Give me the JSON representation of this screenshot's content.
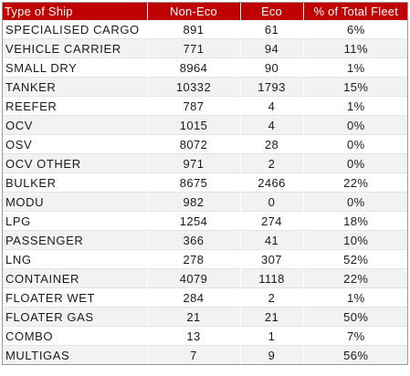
{
  "table": {
    "headers": [
      "Type of Ship",
      "Non-Eco",
      "Eco",
      "% of Total Fleet"
    ],
    "rows": [
      [
        "SPECIALISED CARGO",
        "891",
        "61",
        "6%"
      ],
      [
        "VEHICLE CARRIER",
        "771",
        "94",
        "11%"
      ],
      [
        "SMALL DRY",
        "8964",
        "90",
        "1%"
      ],
      [
        "TANKER",
        "10332",
        "1793",
        "15%"
      ],
      [
        "REEFER",
        "787",
        "4",
        "1%"
      ],
      [
        "OCV",
        "1015",
        "4",
        "0%"
      ],
      [
        "OSV",
        "8072",
        "28",
        "0%"
      ],
      [
        "OCV OTHER",
        "971",
        "2",
        "0%"
      ],
      [
        "BULKER",
        "8675",
        "2466",
        "22%"
      ],
      [
        "MODU",
        "982",
        "0",
        "0%"
      ],
      [
        "LPG",
        "1254",
        "274",
        "18%"
      ],
      [
        "PASSENGER",
        "366",
        "41",
        "10%"
      ],
      [
        "LNG",
        "278",
        "307",
        "52%"
      ],
      [
        "CONTAINER",
        "4079",
        "1118",
        "22%"
      ],
      [
        "FLOATER WET",
        "284",
        "2",
        "1%"
      ],
      [
        "FLOATER GAS",
        "21",
        "21",
        "50%"
      ],
      [
        "COMBO",
        "13",
        "1",
        "7%"
      ],
      [
        "MULTIGAS",
        "7",
        "9",
        "56%"
      ]
    ]
  }
}
